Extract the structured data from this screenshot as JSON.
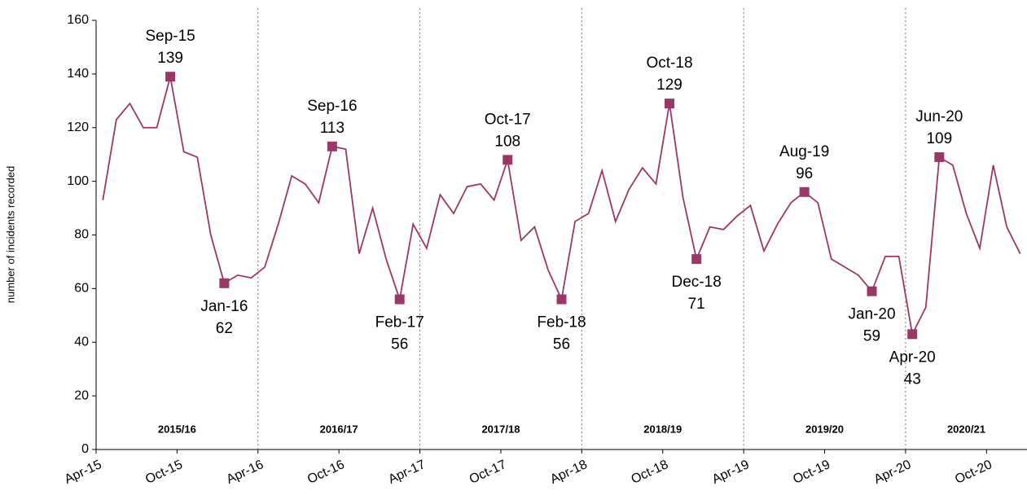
{
  "chart_data": {
    "type": "line",
    "y_label": "number of incidents recorded",
    "categories": [
      "Apr-15",
      null,
      null,
      null,
      null,
      null,
      "Oct-15",
      null,
      null,
      null,
      null,
      null,
      "Apr-16",
      null,
      null,
      null,
      null,
      null,
      "Oct-16",
      null,
      null,
      null,
      null,
      null,
      "Apr-17",
      null,
      null,
      null,
      null,
      null,
      "Oct-17",
      null,
      null,
      null,
      null,
      null,
      "Apr-18",
      null,
      null,
      null,
      null,
      null,
      "Oct-18",
      null,
      null,
      null,
      null,
      null,
      "Apr-19",
      null,
      null,
      null,
      null,
      null,
      "Oct-19",
      null,
      null,
      null,
      null,
      null,
      "Apr-20",
      null,
      null,
      null,
      null,
      null,
      "Oct-20",
      null,
      null
    ],
    "series": [
      {
        "color": "#9b3768",
        "values": [
          93,
          123,
          129,
          120,
          120,
          139,
          111,
          109,
          80,
          62,
          65,
          64,
          68,
          84,
          102,
          99,
          92,
          113,
          112,
          73,
          90,
          71,
          56,
          84,
          75,
          95,
          88,
          98,
          99,
          93,
          108,
          78,
          83,
          67,
          56,
          85,
          88,
          104,
          85,
          97,
          105,
          99,
          129,
          94,
          71,
          83,
          82,
          87,
          91,
          74,
          84,
          92,
          96,
          92,
          71,
          68,
          65,
          59,
          72,
          72,
          43,
          53,
          109,
          106,
          88,
          75,
          106,
          83,
          73
        ]
      }
    ],
    "periods": [
      "2015/16",
      "2016/17",
      "2017/18",
      "2018/19",
      "2019/20",
      "2020/21"
    ],
    "annotations": [
      {
        "label": "Sep-15",
        "point": 5,
        "position": "above"
      },
      {
        "label": "Jan-16",
        "point": 9,
        "position": "below"
      },
      {
        "label": "Sep-16",
        "point": 17,
        "position": "above"
      },
      {
        "label": "Feb-17",
        "point": 22,
        "position": "below"
      },
      {
        "label": "Oct-17",
        "point": 30,
        "position": "above"
      },
      {
        "label": "Feb-18",
        "point": 34,
        "position": "below"
      },
      {
        "label": "Oct-18",
        "point": 42,
        "position": "above"
      },
      {
        "label": "Dec-18",
        "point": 44,
        "position": "below"
      },
      {
        "label": "Aug-19",
        "point": 52,
        "position": "above"
      },
      {
        "label": "Jan-20",
        "point": 57,
        "position": "below"
      },
      {
        "label": "Apr-20",
        "point": 60,
        "position": "below"
      },
      {
        "label": "Jun-20",
        "point": 62,
        "position": "above"
      }
    ],
    "ylim": [
      0,
      160
    ],
    "yticks": [
      0,
      20,
      40,
      60,
      80,
      100,
      120,
      140,
      160
    ]
  }
}
